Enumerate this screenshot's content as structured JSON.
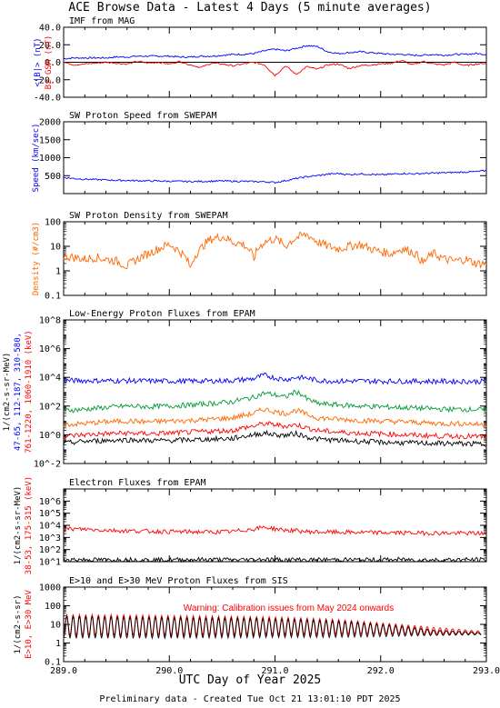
{
  "header": {
    "title": "ACE Browse Data - Latest 4 Days (5 minute averages)",
    "x_axis_title": "UTC Day of Year 2025",
    "footer": "Preliminary data - Created Tue Oct 21 13:01:10 PDT 2025"
  },
  "x_ticks": [
    "289.0",
    "290.0",
    "291.0",
    "292.0",
    "293.0"
  ],
  "chart_data": [
    {
      "type": "line",
      "title": "IMF from MAG",
      "xlim": [
        289.0,
        293.0
      ],
      "ylim": [
        -40,
        40
      ],
      "scale": "linear",
      "y_ticks": [
        "40.0",
        "20.0",
        "0.0",
        "-20.0",
        "-40.0"
      ],
      "y_tick_values": [
        40,
        20,
        0,
        -20,
        -40
      ],
      "ylabel_lines": [
        {
          "text": "<|B|> (nT)",
          "color": "#0000ff"
        },
        {
          "text": "Bz GSM (nT)",
          "color": "#ff0000"
        }
      ],
      "zero_line": true,
      "series": [
        {
          "name": "<|B|>",
          "color": "#0000ff",
          "x": [
            289.0,
            289.1,
            289.2,
            289.3,
            289.4,
            289.5,
            289.6,
            289.7,
            289.8,
            289.9,
            290.0,
            290.1,
            290.2,
            290.3,
            290.4,
            290.5,
            290.6,
            290.7,
            290.8,
            290.9,
            291.0,
            291.1,
            291.2,
            291.3,
            291.4,
            291.5,
            291.6,
            291.7,
            291.8,
            291.9,
            292.0,
            292.1,
            292.2,
            292.3,
            292.4,
            292.5,
            292.6,
            292.7,
            292.8,
            292.9,
            293.0
          ],
          "values": [
            4,
            5,
            5,
            5,
            5,
            6,
            6,
            7,
            7,
            7,
            7,
            6,
            6,
            7,
            7,
            8,
            9,
            9,
            10,
            13,
            15,
            13,
            16,
            19,
            18,
            12,
            10,
            11,
            12,
            11,
            10,
            9,
            9,
            8,
            8,
            9,
            8,
            9,
            9,
            10,
            9
          ]
        },
        {
          "name": "Bz GSM",
          "color": "#ff0000",
          "x": [
            289.0,
            289.1,
            289.2,
            289.3,
            289.4,
            289.5,
            289.6,
            289.7,
            289.8,
            289.9,
            290.0,
            290.1,
            290.2,
            290.3,
            290.4,
            290.5,
            290.6,
            290.7,
            290.8,
            290.9,
            291.0,
            291.1,
            291.2,
            291.3,
            291.4,
            291.5,
            291.6,
            291.7,
            291.8,
            291.9,
            292.0,
            292.1,
            292.2,
            292.3,
            292.4,
            292.5,
            292.6,
            292.7,
            292.8,
            292.9,
            293.0
          ],
          "values": [
            0,
            -3,
            -2,
            -1,
            0,
            -1,
            -2,
            1,
            -1,
            0,
            -2,
            1,
            -3,
            -6,
            -1,
            -2,
            -4,
            -2,
            0,
            -3,
            -15,
            -4,
            -14,
            -5,
            -8,
            -3,
            -2,
            -7,
            -4,
            -3,
            -2,
            -1,
            2,
            -3,
            1,
            -2,
            -3,
            0,
            -4,
            -2,
            -1
          ]
        }
      ]
    },
    {
      "type": "line",
      "title": "SW Proton Speed from SWEPAM",
      "xlim": [
        289.0,
        293.0
      ],
      "ylim": [
        0,
        2000
      ],
      "scale": "linear",
      "y_ticks": [
        "2000",
        "1500",
        "1000",
        "500"
      ],
      "y_tick_values": [
        2000,
        1500,
        1000,
        500
      ],
      "ylabel_lines": [
        {
          "text": "Speed (km/sec)",
          "color": "#0000ff"
        }
      ],
      "series": [
        {
          "name": "Speed",
          "color": "#0000ff",
          "x": [
            289.0,
            289.1,
            289.2,
            289.3,
            289.4,
            289.5,
            289.6,
            289.7,
            289.8,
            289.9,
            290.0,
            290.1,
            290.2,
            290.3,
            290.4,
            290.5,
            290.6,
            290.7,
            290.8,
            290.9,
            291.0,
            291.1,
            291.2,
            291.3,
            291.4,
            291.5,
            291.6,
            291.7,
            291.8,
            291.9,
            292.0,
            292.1,
            292.2,
            292.3,
            292.4,
            292.5,
            292.6,
            292.7,
            292.8,
            292.9,
            293.0
          ],
          "values": [
            450,
            420,
            400,
            390,
            380,
            370,
            365,
            360,
            355,
            350,
            345,
            340,
            335,
            340,
            345,
            350,
            345,
            340,
            335,
            330,
            310,
            360,
            420,
            470,
            500,
            540,
            560,
            530,
            550,
            540,
            520,
            540,
            560,
            550,
            560,
            570,
            580,
            590,
            600,
            610,
            640
          ]
        }
      ]
    },
    {
      "type": "line",
      "title": "SW Proton Density from SWEPAM",
      "xlim": [
        289.0,
        293.0
      ],
      "ylim": [
        0.1,
        100
      ],
      "scale": "log",
      "y_ticks": [
        "100",
        "10",
        "1",
        "0.1"
      ],
      "y_tick_values": [
        100,
        10,
        1,
        0.1
      ],
      "ylabel_lines": [
        {
          "text": "Density (#/cm3)",
          "color": "#ff6600"
        }
      ],
      "series": [
        {
          "name": "Density",
          "color": "#ff6600",
          "x": [
            289.0,
            289.1,
            289.2,
            289.3,
            289.4,
            289.5,
            289.6,
            289.7,
            289.8,
            289.9,
            290.0,
            290.1,
            290.2,
            290.3,
            290.4,
            290.5,
            290.6,
            290.7,
            290.8,
            290.9,
            291.0,
            291.1,
            291.2,
            291.3,
            291.4,
            291.5,
            291.6,
            291.7,
            291.8,
            291.9,
            292.0,
            292.1,
            292.2,
            292.3,
            292.4,
            292.5,
            292.6,
            292.7,
            292.8,
            292.9,
            293.0
          ],
          "values": [
            4,
            3.5,
            3,
            3.5,
            3,
            2.5,
            1.5,
            3,
            5,
            8,
            12,
            6,
            1.2,
            8,
            20,
            25,
            15,
            12,
            3,
            15,
            20,
            10,
            22,
            30,
            15,
            10,
            8,
            10,
            12,
            8,
            6,
            5,
            8,
            6,
            2,
            5,
            3,
            2.5,
            3,
            2,
            2
          ]
        }
      ]
    },
    {
      "type": "line",
      "title": "Low-Energy Proton Fluxes from EPAM",
      "xlim": [
        289.0,
        293.0
      ],
      "ylim": [
        0.01,
        100000000
      ],
      "scale": "log",
      "y_ticks": [
        "10^8",
        "10^6",
        "10^4",
        "10^2",
        "10^0",
        "10^-2"
      ],
      "y_tick_values": [
        100000000,
        1000000,
        10000,
        100,
        1,
        0.01
      ],
      "ylabel_lines": [
        {
          "text": "1/(cm2-s-sr-MeV)",
          "color": "#000000"
        },
        {
          "text": "47-65, 112-187, 310-580,",
          "color": "#0000ff"
        },
        {
          "text": "761-1220, 1060-1910 (keV)",
          "color": "#ff0000"
        }
      ],
      "series": [
        {
          "name": "47-65 keV",
          "color": "#0000ff",
          "x": [
            289.0,
            289.2,
            289.4,
            289.6,
            289.8,
            290.0,
            290.2,
            290.4,
            290.6,
            290.8,
            290.9,
            291.0,
            291.1,
            291.2,
            291.3,
            291.4,
            291.6,
            291.8,
            292.0,
            292.2,
            292.4,
            292.6,
            292.8,
            293.0
          ],
          "values": [
            6000,
            6000,
            5800,
            5800,
            5600,
            5500,
            5500,
            5600,
            6000,
            8000,
            14000,
            9000,
            7000,
            10000,
            9000,
            6000,
            5500,
            5500,
            5400,
            5400,
            5300,
            5300,
            5200,
            5200
          ]
        },
        {
          "name": "112-187 keV",
          "color": "#009933",
          "x": [
            289.0,
            289.2,
            289.4,
            289.6,
            289.8,
            290.0,
            290.2,
            290.4,
            290.6,
            290.8,
            290.9,
            291.0,
            291.1,
            291.2,
            291.3,
            291.4,
            291.6,
            291.8,
            292.0,
            292.2,
            292.4,
            292.6,
            292.8,
            293.0
          ],
          "values": [
            50,
            60,
            80,
            100,
            90,
            100,
            120,
            150,
            200,
            400,
            800,
            600,
            400,
            1000,
            300,
            150,
            120,
            100,
            90,
            80,
            70,
            60,
            60,
            55
          ]
        },
        {
          "name": "310-580 keV",
          "color": "#ff6600",
          "x": [
            289.0,
            289.2,
            289.4,
            289.6,
            289.8,
            290.0,
            290.2,
            290.4,
            290.6,
            290.8,
            290.9,
            291.0,
            291.1,
            291.2,
            291.3,
            291.4,
            291.6,
            291.8,
            292.0,
            292.2,
            292.4,
            292.6,
            292.8,
            293.0
          ],
          "values": [
            5,
            6,
            8,
            9,
            8,
            9,
            10,
            12,
            15,
            30,
            60,
            40,
            30,
            50,
            25,
            15,
            12,
            10,
            9,
            8,
            7,
            6,
            6,
            5
          ]
        },
        {
          "name": "761-1220 keV",
          "color": "#ff0000",
          "x": [
            289.0,
            289.2,
            289.4,
            289.6,
            289.8,
            290.0,
            290.2,
            290.4,
            290.6,
            290.8,
            290.9,
            291.0,
            291.1,
            291.2,
            291.3,
            291.4,
            291.6,
            291.8,
            292.0,
            292.2,
            292.4,
            292.6,
            292.8,
            293.0
          ],
          "values": [
            0.8,
            1,
            1.2,
            1.3,
            1.2,
            1.3,
            1.5,
            1.8,
            2,
            4,
            6,
            5,
            4,
            5,
            3,
            2,
            1.5,
            1.3,
            1.2,
            1,
            0.9,
            0.8,
            0.8,
            0.7
          ]
        },
        {
          "name": "1060-1910 keV",
          "color": "#000000",
          "x": [
            289.0,
            289.2,
            289.4,
            289.6,
            289.8,
            290.0,
            290.2,
            290.4,
            290.6,
            290.8,
            290.9,
            291.0,
            291.1,
            291.2,
            291.3,
            291.4,
            291.6,
            291.8,
            292.0,
            292.2,
            292.4,
            292.6,
            292.8,
            293.0
          ],
          "values": [
            0.25,
            0.35,
            0.4,
            0.45,
            0.4,
            0.4,
            0.45,
            0.5,
            0.55,
            1,
            1.3,
            1,
            0.9,
            1.2,
            0.7,
            0.5,
            0.4,
            0.35,
            0.3,
            0.28,
            0.26,
            0.25,
            0.24,
            0.22
          ]
        }
      ]
    },
    {
      "type": "line",
      "title": "Electron Fluxes from EPAM",
      "xlim": [
        289.0,
        293.0
      ],
      "ylim": [
        10,
        10000000
      ],
      "scale": "log",
      "y_ticks": [
        "10^6",
        "10^5",
        "10^4",
        "10^3",
        "10^2",
        "10^1"
      ],
      "y_tick_values": [
        1000000,
        100000,
        10000,
        1000,
        100,
        10
      ],
      "ylabel_lines": [
        {
          "text": "1/(cm2-s-sr-MeV)",
          "color": "#000000"
        },
        {
          "text": "38-53, 175-315 (keV)",
          "color": "#ff0000"
        }
      ],
      "series": [
        {
          "name": "38-53 keV",
          "color": "#ff0000",
          "x": [
            289.0,
            289.2,
            289.4,
            289.6,
            289.8,
            290.0,
            290.2,
            290.4,
            290.6,
            290.8,
            290.9,
            291.0,
            291.1,
            291.2,
            291.3,
            291.4,
            291.6,
            291.8,
            292.0,
            292.2,
            292.4,
            292.6,
            292.8,
            293.0
          ],
          "values": [
            5000,
            4800,
            4000,
            3500,
            3200,
            3000,
            2900,
            2800,
            3000,
            5000,
            7000,
            5000,
            4000,
            3500,
            3000,
            2800,
            2700,
            2600,
            2500,
            2400,
            2300,
            2300,
            2200,
            2200
          ]
        },
        {
          "name": "175-315 keV",
          "color": "#000000",
          "x": [
            289.0,
            289.2,
            289.4,
            289.6,
            289.8,
            290.0,
            290.2,
            290.4,
            290.6,
            290.8,
            290.9,
            291.0,
            291.1,
            291.2,
            291.3,
            291.4,
            291.6,
            291.8,
            292.0,
            292.2,
            292.4,
            292.6,
            292.8,
            293.0
          ],
          "values": [
            15,
            15,
            14,
            15,
            14,
            14,
            15,
            15,
            14,
            15,
            16,
            15,
            14,
            15,
            14,
            14,
            15,
            14,
            14,
            15,
            14,
            14,
            15,
            14
          ]
        }
      ]
    },
    {
      "type": "line",
      "title": "E>10 and E>30 MeV Proton Fluxes from SIS",
      "xlim": [
        289.0,
        293.0
      ],
      "ylim": [
        0.1,
        1000
      ],
      "scale": "log",
      "y_ticks": [
        "1000",
        "100",
        "10",
        "1",
        "0.1"
      ],
      "y_tick_values": [
        1000,
        100,
        10,
        1,
        0.1
      ],
      "ylabel_lines": [
        {
          "text": "1/(cm2-s-sr)",
          "color": "#000000"
        },
        {
          "text": "E>10, E>30 MeV",
          "color": "#ff0000"
        }
      ],
      "annotation": {
        "text": "Warning: Calibration issues from May 2024 onwards",
        "color": "#ff0000"
      },
      "oscillation": {
        "cycles": 66,
        "start_x": 289.0,
        "end_x": 292.95
      },
      "series": [
        {
          "name": "E>10 MeV",
          "color": "#ff0000",
          "x": [
            289.0,
            289.5,
            290.0,
            290.5,
            291.0,
            291.5,
            292.0,
            292.5,
            293.0
          ],
          "peaks": [
            35,
            33,
            30,
            28,
            25,
            20,
            12,
            7,
            4
          ],
          "troughs": [
            2.5,
            2.5,
            2.6,
            2.7,
            2.8,
            2.9,
            3,
            3,
            3
          ]
        },
        {
          "name": "E>30 MeV",
          "color": "#000000",
          "x": [
            289.0,
            289.5,
            290.0,
            290.5,
            291.0,
            291.5,
            292.0,
            292.5,
            293.0
          ],
          "peaks": [
            28,
            26,
            24,
            22,
            20,
            16,
            10,
            5,
            3.5
          ],
          "troughs": [
            1.8,
            1.8,
            1.8,
            1.9,
            2,
            2,
            2.2,
            2.5,
            2.8
          ]
        }
      ]
    }
  ]
}
